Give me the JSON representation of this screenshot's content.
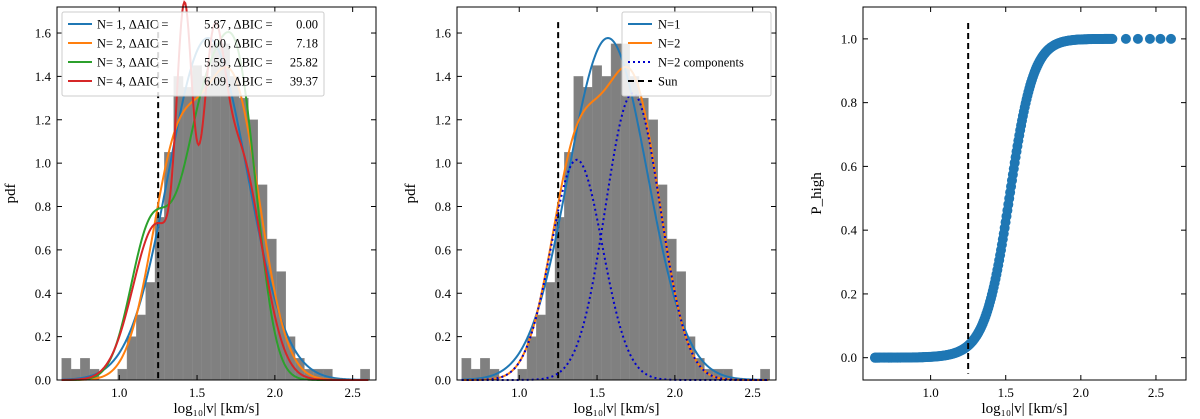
{
  "chart_data": [
    {
      "type": "bar",
      "panel": "left",
      "xlabel": "log₁₀|v| [km/s]",
      "ylabel": "pdf",
      "xlim": [
        0.6,
        2.65
      ],
      "ylim": [
        0,
        1.72
      ],
      "xticks": [
        1.0,
        1.5,
        2.0,
        2.5
      ],
      "yticks": [
        0.0,
        0.2,
        0.4,
        0.6,
        0.8,
        1.0,
        1.2,
        1.4,
        1.6
      ],
      "xtick_labels": [
        "1.0",
        "1.5",
        "2.0",
        "2.5"
      ],
      "ytick_labels": [
        "0.0",
        "0.2",
        "0.4",
        "0.6",
        "0.8",
        "1.0",
        "1.2",
        "1.4",
        "1.6"
      ],
      "sun_line_x": 1.25,
      "legend_position": "top-left",
      "histogram": {
        "bin_edges": [
          0.63,
          0.69,
          0.75,
          0.81,
          0.87,
          0.93,
          0.99,
          1.05,
          1.11,
          1.17,
          1.23,
          1.29,
          1.35,
          1.41,
          1.47,
          1.53,
          1.59,
          1.65,
          1.71,
          1.77,
          1.83,
          1.89,
          1.95,
          2.01,
          2.07,
          2.13,
          2.19,
          2.25,
          2.31,
          2.37,
          2.43,
          2.49,
          2.55,
          2.61
        ],
        "values": [
          0.1,
          0.05,
          0.1,
          0.05,
          0.0,
          0.0,
          0.05,
          0.2,
          0.3,
          0.45,
          0.75,
          1.05,
          1.4,
          1.35,
          1.45,
          1.4,
          1.55,
          1.55,
          1.4,
          1.3,
          1.2,
          0.9,
          0.65,
          0.5,
          0.2,
          0.1,
          0.05,
          0.05,
          0.05,
          0.0,
          0.0,
          0.0,
          0.05
        ],
        "color": "#808080"
      },
      "series": [
        {
          "name": "N= 1, ΔAIC =",
          "aic": "5.87",
          "bic_label": ", ΔBIC =",
          "bic": "0.00",
          "color": "#1f77b4",
          "components": [
            {
              "w": 1.0,
              "mu": 1.57,
              "sigma": 0.253
            }
          ]
        },
        {
          "name": "N= 2, ΔAIC =",
          "aic": "0.00",
          "bic_label": ", ΔBIC =",
          "bic": "7.18",
          "color": "#ff7f0e",
          "components": [
            {
              "w": 0.42,
              "mu": 1.37,
              "sigma": 0.165
            },
            {
              "w": 0.58,
              "mu": 1.73,
              "sigma": 0.175
            }
          ]
        },
        {
          "name": "N= 3, ΔAIC =",
          "aic": "5.59",
          "bic_label": ", ΔBIC =",
          "bic": "25.82",
          "color": "#2ca02c",
          "components": [
            {
              "w": 0.22,
              "mu": 1.2,
              "sigma": 0.13
            },
            {
              "w": 0.45,
              "mu": 1.55,
              "sigma": 0.15
            },
            {
              "w": 0.33,
              "mu": 1.78,
              "sigma": 0.12
            }
          ]
        },
        {
          "name": "N= 4, ΔAIC =",
          "aic": "6.09",
          "bic_label": ", ΔBIC =",
          "bic": "39.37",
          "color": "#d62728",
          "components": [
            {
              "w": 0.27,
              "mu": 1.24,
              "sigma": 0.15
            },
            {
              "w": 0.16,
              "mu": 1.42,
              "sigma": 0.05
            },
            {
              "w": 0.17,
              "mu": 1.6,
              "sigma": 0.07
            },
            {
              "w": 0.4,
              "mu": 1.76,
              "sigma": 0.15
            }
          ]
        }
      ]
    },
    {
      "type": "bar",
      "panel": "middle",
      "xlabel": "log₁₀|v| [km/s]",
      "ylabel": "pdf",
      "xlim": [
        0.6,
        2.65
      ],
      "ylim": [
        0,
        1.72
      ],
      "xticks": [
        1.0,
        1.5,
        2.0,
        2.5
      ],
      "yticks": [
        0.0,
        0.2,
        0.4,
        0.6,
        0.8,
        1.0,
        1.2,
        1.4,
        1.6
      ],
      "xtick_labels": [
        "1.0",
        "1.5",
        "2.0",
        "2.5"
      ],
      "ytick_labels": [
        "0.0",
        "0.2",
        "0.4",
        "0.6",
        "0.8",
        "1.0",
        "1.2",
        "1.4",
        "1.6"
      ],
      "sun_line_x": 1.25,
      "legend_position": "top-right",
      "histogram": {
        "bin_edges": [
          0.63,
          0.69,
          0.75,
          0.81,
          0.87,
          0.93,
          0.99,
          1.05,
          1.11,
          1.17,
          1.23,
          1.29,
          1.35,
          1.41,
          1.47,
          1.53,
          1.59,
          1.65,
          1.71,
          1.77,
          1.83,
          1.89,
          1.95,
          2.01,
          2.07,
          2.13,
          2.19,
          2.25,
          2.31,
          2.37,
          2.43,
          2.49,
          2.55,
          2.61
        ],
        "values": [
          0.1,
          0.05,
          0.1,
          0.05,
          0.0,
          0.0,
          0.05,
          0.2,
          0.3,
          0.45,
          0.75,
          1.05,
          1.4,
          1.35,
          1.45,
          1.4,
          1.55,
          1.55,
          1.4,
          1.3,
          1.2,
          0.9,
          0.65,
          0.5,
          0.2,
          0.1,
          0.05,
          0.05,
          0.05,
          0.0,
          0.0,
          0.0,
          0.05
        ],
        "color": "#808080"
      },
      "series": [
        {
          "name": "N=1",
          "color": "#1f77b4",
          "style": "solid",
          "components": [
            {
              "w": 1.0,
              "mu": 1.57,
              "sigma": 0.253
            }
          ]
        },
        {
          "name": "N=2",
          "color": "#ff7f0e",
          "style": "solid",
          "components": [
            {
              "w": 0.42,
              "mu": 1.37,
              "sigma": 0.165
            },
            {
              "w": 0.58,
              "mu": 1.73,
              "sigma": 0.175
            }
          ]
        },
        {
          "name": "N=2 components",
          "color": "#0000cc",
          "style": "dotted",
          "components_separate": [
            {
              "w": 0.42,
              "mu": 1.37,
              "sigma": 0.165
            },
            {
              "w": 0.58,
              "mu": 1.73,
              "sigma": 0.175
            }
          ]
        },
        {
          "name": "Sun",
          "color": "#000000",
          "style": "dashed"
        }
      ]
    },
    {
      "type": "scatter",
      "panel": "right",
      "xlabel": "log₁₀|v| [km/s]",
      "ylabel": "P_high",
      "xlim": [
        0.55,
        2.7
      ],
      "ylim": [
        -0.07,
        1.1
      ],
      "xticks": [
        1.0,
        1.5,
        2.0,
        2.5
      ],
      "yticks": [
        0.0,
        0.2,
        0.4,
        0.6,
        0.8,
        1.0
      ],
      "xtick_labels": [
        "1.0",
        "1.5",
        "2.0",
        "2.5"
      ],
      "ytick_labels": [
        "0.0",
        "0.2",
        "0.4",
        "0.6",
        "0.8",
        "1.0"
      ],
      "sun_line_x": 1.25,
      "color": "#1f77b4",
      "curve": {
        "w1": 0.42,
        "mu1": 1.37,
        "s1": 0.165,
        "w2": 0.58,
        "mu2": 1.73,
        "s2": 0.175,
        "x_start": 0.63,
        "x_end": 2.21
      },
      "isolated_points_x": [
        0.63,
        0.66,
        0.69,
        0.72,
        0.74,
        0.78,
        0.8,
        0.82,
        0.85,
        0.87,
        0.95,
        2.3,
        2.38,
        2.46,
        2.53,
        2.6
      ]
    }
  ]
}
